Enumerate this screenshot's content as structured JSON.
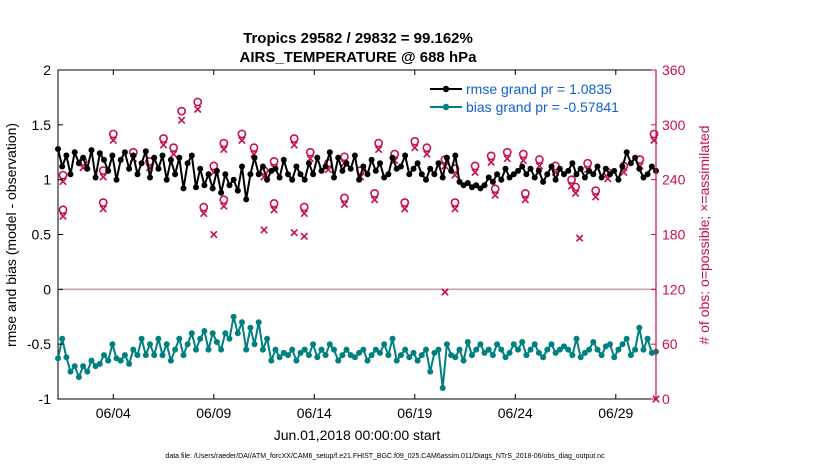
{
  "chart_data": {
    "type": "line",
    "title": "Tropics 29582 / 29832 = 99.162%",
    "subtitle": "AIRS_TEMPERATURE @ 688 hPa",
    "xlabel": "Jun.01,2018 00:00:00 start",
    "ylabel": "rmse and bias (model - observation)",
    "y2label": "# of obs: o=possible; ×=assimilated",
    "footer": "data file: /Users/raeder/DAI/ATM_forcXX/CAM6_setup/f.e21.FHIST_BGC.f09_025.CAM6assim.011/Diags_NTrS_2018-06/obs_diag_output.nc",
    "x_ticks": [
      "06/04",
      "06/09",
      "06/14",
      "06/19",
      "06/24",
      "06/29"
    ],
    "x_tick_days": [
      4,
      9,
      14,
      19,
      24,
      29
    ],
    "xlim": [
      1.25,
      31
    ],
    "ylim": [
      -1,
      2
    ],
    "y_ticks": [
      "-1",
      "-0.5",
      "0",
      "0.5",
      "1",
      "1.5",
      "2"
    ],
    "y2lim": [
      0,
      360
    ],
    "y2_ticks": [
      "0",
      "60",
      "120",
      "180",
      "240",
      "300",
      "360"
    ],
    "zero_line": 0,
    "colors": {
      "rmse": "#000000",
      "bias": "#008080",
      "obs": "#c8104a",
      "zero": "#c8a8a8",
      "legend_text": "#1060d0"
    },
    "series": [
      {
        "name": "rmse grand pr = 1.0835",
        "key": "rmse",
        "values": [
          1.28,
          1.12,
          1.22,
          1.05,
          1.25,
          1.15,
          1.2,
          1.1,
          1.27,
          1.02,
          1.24,
          1.18,
          1.08,
          1.22,
          1.0,
          1.18,
          1.25,
          1.1,
          1.22,
          1.05,
          1.15,
          1.26,
          1.02,
          1.2,
          1.1,
          1.22,
          1.0,
          1.18,
          1.05,
          1.2,
          0.92,
          1.15,
          1.22,
          0.93,
          1.1,
          0.95,
          1.05,
          0.92,
          1.08,
          0.88,
          1.05,
          0.95,
          1.0,
          0.9,
          1.12,
          0.82,
          1.05,
          1.2,
          1.05,
          1.12,
          1.0,
          1.08,
          1.1,
          1.02,
          1.18,
          1.05,
          1.0,
          1.12,
          1.05,
          1.0,
          1.15,
          1.05,
          1.2,
          1.08,
          1.12,
          1.25,
          1.02,
          1.2,
          1.08,
          1.15,
          1.1,
          1.22,
          1.0,
          1.12,
          1.05,
          1.18,
          1.08,
          1.15,
          1.02,
          1.05,
          1.2,
          1.1,
          1.12,
          1.22,
          1.05,
          1.1,
          1.15,
          1.05,
          1.0,
          1.1,
          1.05,
          1.15,
          1.02,
          1.2,
          1.08,
          1.22,
          0.98,
          0.95,
          0.97,
          0.93,
          0.95,
          0.92,
          0.95,
          1.02,
          0.98,
          1.05,
          1.0,
          1.1,
          1.02,
          1.05,
          1.08,
          1.12,
          1.05,
          1.1,
          1.02,
          1.08,
          0.98,
          1.05,
          1.12,
          1.0,
          1.1,
          1.05,
          1.08,
          1.15,
          1.05,
          1.1,
          1.02,
          1.08,
          1.05,
          1.12,
          1.02,
          1.1,
          1.05,
          1.08,
          1.0,
          1.12,
          1.25,
          1.15,
          1.2,
          1.1,
          1.02,
          1.05,
          1.12,
          1.08
        ]
      },
      {
        "name": "bias grand pr = -0.57841",
        "key": "bias",
        "values": [
          -0.63,
          -0.45,
          -0.62,
          -0.75,
          -0.7,
          -0.8,
          -0.7,
          -0.75,
          -0.65,
          -0.7,
          -0.68,
          -0.6,
          -0.65,
          -0.5,
          -0.63,
          -0.65,
          -0.6,
          -0.68,
          -0.55,
          -0.6,
          -0.45,
          -0.6,
          -0.5,
          -0.6,
          -0.45,
          -0.6,
          -0.5,
          -0.65,
          -0.55,
          -0.45,
          -0.6,
          -0.5,
          -0.4,
          -0.55,
          -0.45,
          -0.38,
          -0.55,
          -0.4,
          -0.48,
          -0.55,
          -0.4,
          -0.45,
          -0.25,
          -0.4,
          -0.3,
          -0.55,
          -0.35,
          -0.5,
          -0.3,
          -0.55,
          -0.45,
          -0.65,
          -0.55,
          -0.62,
          -0.58,
          -0.6,
          -0.55,
          -0.65,
          -0.58,
          -0.55,
          -0.6,
          -0.5,
          -0.62,
          -0.55,
          -0.6,
          -0.5,
          -0.55,
          -0.65,
          -0.6,
          -0.55,
          -0.6,
          -0.62,
          -0.58,
          -0.55,
          -0.65,
          -0.6,
          -0.55,
          -0.58,
          -0.5,
          -0.6,
          -0.45,
          -0.65,
          -0.6,
          -0.55,
          -0.62,
          -0.58,
          -0.65,
          -0.6,
          -0.55,
          -0.75,
          -0.58,
          -0.55,
          -0.9,
          -0.5,
          -0.6,
          -0.62,
          -0.55,
          -0.65,
          -0.48,
          -0.6,
          -0.55,
          -0.5,
          -0.58,
          -0.55,
          -0.6,
          -0.5,
          -0.55,
          -0.62,
          -0.58,
          -0.5,
          -0.55,
          -0.48,
          -0.6,
          -0.55,
          -0.5,
          -0.58,
          -0.62,
          -0.55,
          -0.5,
          -0.58,
          -0.55,
          -0.52,
          -0.55,
          -0.6,
          -0.45,
          -0.62,
          -0.58,
          -0.55,
          -0.48,
          -0.55,
          -0.6,
          -0.52,
          -0.5,
          -0.62,
          -0.55,
          -0.5,
          -0.45,
          -0.6,
          -0.55,
          -0.35,
          -0.55,
          -0.45,
          -0.58,
          -0.57
        ]
      }
    ],
    "obs_possible": [
      [
        1.5,
        245
      ],
      [
        2.5,
        260
      ],
      [
        3.5,
        250
      ],
      [
        4.0,
        290
      ],
      [
        5.0,
        270
      ],
      [
        5.8,
        260
      ],
      [
        6.5,
        285
      ],
      [
        7.0,
        275
      ],
      [
        7.4,
        315
      ],
      [
        8.2,
        325
      ],
      [
        9.0,
        255
      ],
      [
        9.5,
        280
      ],
      [
        10.4,
        290
      ],
      [
        11.0,
        275
      ],
      [
        11.5,
        250
      ],
      [
        12.0,
        260
      ],
      [
        13.0,
        285
      ],
      [
        13.8,
        270
      ],
      [
        14.7,
        258
      ],
      [
        15.5,
        265
      ],
      [
        16.3,
        250
      ],
      [
        17.2,
        280
      ],
      [
        18.0,
        268
      ],
      [
        19.0,
        282
      ],
      [
        19.6,
        275
      ],
      [
        20.5,
        262
      ],
      [
        21.0,
        252
      ],
      [
        22.0,
        255
      ],
      [
        22.8,
        266
      ],
      [
        23.6,
        270
      ],
      [
        24.4,
        268
      ],
      [
        25.2,
        262
      ],
      [
        26.0,
        255
      ],
      [
        26.8,
        240
      ],
      [
        27.6,
        258
      ],
      [
        28.6,
        248
      ],
      [
        29.4,
        255
      ],
      [
        30.2,
        262
      ],
      [
        30.9,
        290
      ],
      [
        1.5,
        207
      ],
      [
        3.5,
        215
      ],
      [
        8.5,
        210
      ],
      [
        9.5,
        218
      ],
      [
        12.0,
        214
      ],
      [
        13.5,
        210
      ],
      [
        15.5,
        220
      ],
      [
        17.0,
        225
      ],
      [
        18.5,
        215
      ],
      [
        21.0,
        215
      ],
      [
        23.0,
        230
      ],
      [
        24.5,
        225
      ],
      [
        27.0,
        232
      ],
      [
        28.0,
        228
      ]
    ],
    "obs_assimilated": [
      [
        1.5,
        238
      ],
      [
        2.5,
        253
      ],
      [
        3.5,
        243
      ],
      [
        4.0,
        283
      ],
      [
        5.0,
        263
      ],
      [
        5.8,
        253
      ],
      [
        6.5,
        278
      ],
      [
        7.0,
        268
      ],
      [
        7.4,
        305
      ],
      [
        8.2,
        317
      ],
      [
        9.0,
        248
      ],
      [
        9.5,
        273
      ],
      [
        10.4,
        283
      ],
      [
        11.0,
        268
      ],
      [
        11.5,
        243
      ],
      [
        12.0,
        253
      ],
      [
        13.0,
        278
      ],
      [
        13.8,
        263
      ],
      [
        14.7,
        251
      ],
      [
        15.5,
        258
      ],
      [
        16.3,
        243
      ],
      [
        17.2,
        273
      ],
      [
        18.0,
        261
      ],
      [
        19.0,
        275
      ],
      [
        19.6,
        268
      ],
      [
        20.5,
        255
      ],
      [
        21.0,
        245
      ],
      [
        22.0,
        248
      ],
      [
        22.8,
        259
      ],
      [
        23.6,
        263
      ],
      [
        24.4,
        261
      ],
      [
        25.2,
        255
      ],
      [
        26.0,
        248
      ],
      [
        26.8,
        233
      ],
      [
        27.6,
        251
      ],
      [
        28.6,
        241
      ],
      [
        29.4,
        248
      ],
      [
        30.2,
        255
      ],
      [
        30.9,
        283
      ],
      [
        1.5,
        200
      ],
      [
        3.5,
        208
      ],
      [
        8.5,
        203
      ],
      [
        9.5,
        211
      ],
      [
        12.0,
        207
      ],
      [
        13.5,
        203
      ],
      [
        15.5,
        213
      ],
      [
        17.0,
        218
      ],
      [
        18.5,
        208
      ],
      [
        21.0,
        208
      ],
      [
        23.0,
        223
      ],
      [
        24.5,
        218
      ],
      [
        27.0,
        225
      ],
      [
        28.0,
        221
      ],
      [
        9.0,
        180
      ],
      [
        11.5,
        185
      ],
      [
        13.0,
        182
      ],
      [
        13.5,
        178
      ],
      [
        20.5,
        117
      ],
      [
        27.2,
        176
      ],
      [
        31.0,
        0
      ]
    ]
  }
}
